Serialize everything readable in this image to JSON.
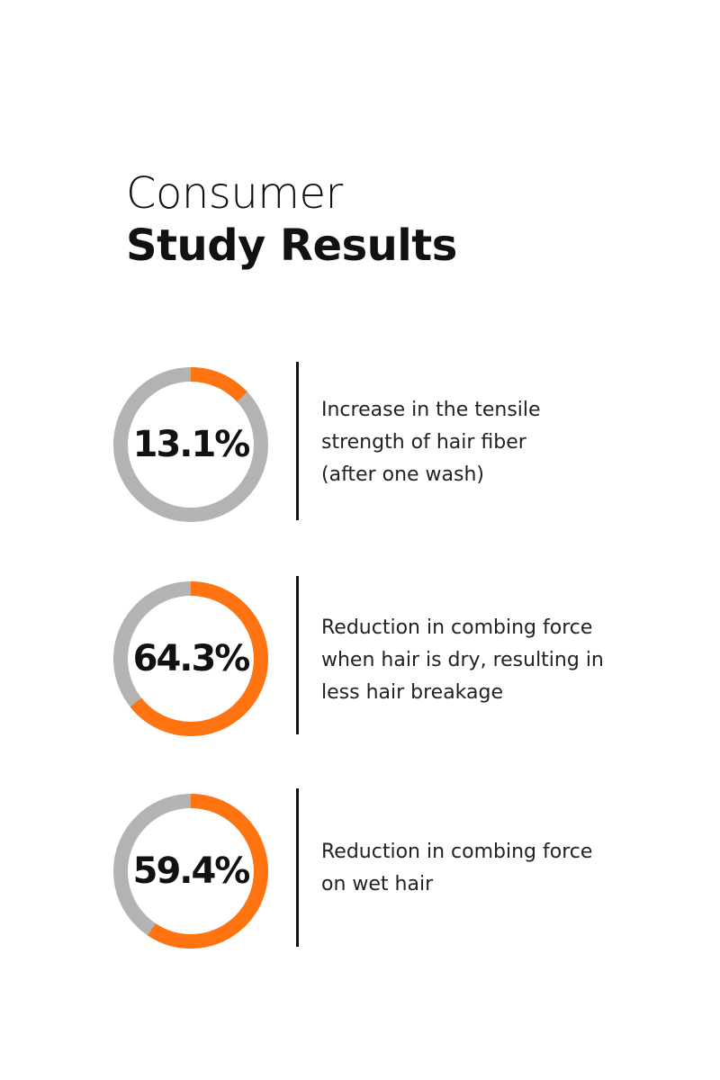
{
  "header": {
    "line1": "Consumer",
    "line2": "Study Results"
  },
  "colors": {
    "accent": "#ff7410",
    "track": "#b3b3b3",
    "text": "#111111"
  },
  "chart_data": [
    {
      "type": "pie",
      "value": 13.1,
      "label": "13.1%",
      "description": "Increase in the tensile\nstrength of hair fiber\n(after one wash)"
    },
    {
      "type": "pie",
      "value": 64.3,
      "label": "64.3%",
      "description": "Reduction in combing force\nwhen hair is dry, resulting in\nless hair breakage"
    },
    {
      "type": "pie",
      "value": 59.4,
      "label": "59.4%",
      "description": "Reduction in combing force\non wet hair"
    }
  ]
}
